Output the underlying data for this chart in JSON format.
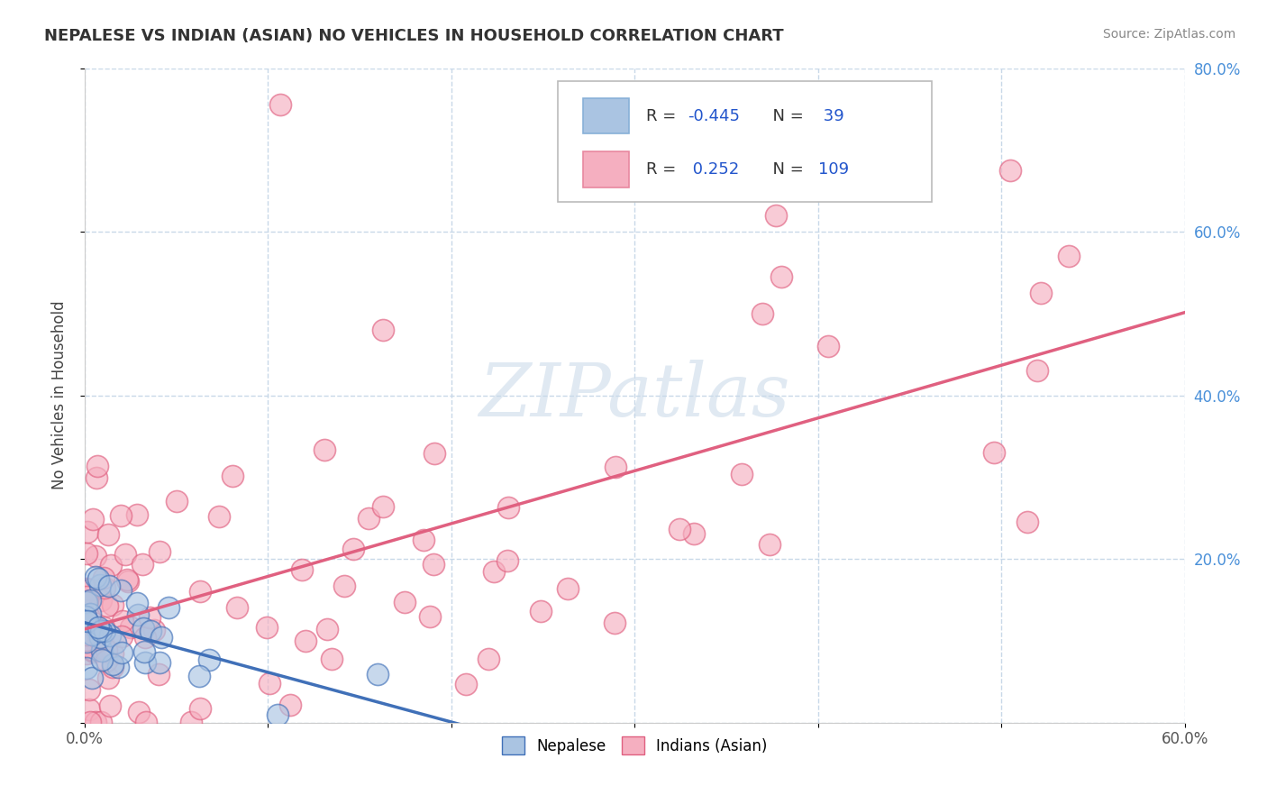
{
  "title": "NEPALESE VS INDIAN (ASIAN) NO VEHICLES IN HOUSEHOLD CORRELATION CHART",
  "source": "Source: ZipAtlas.com",
  "ylabel": "No Vehicles in Household",
  "xlim": [
    0.0,
    0.6
  ],
  "ylim": [
    0.0,
    0.8
  ],
  "xticks": [
    0.0,
    0.1,
    0.2,
    0.3,
    0.4,
    0.5,
    0.6
  ],
  "yticks": [
    0.0,
    0.2,
    0.4,
    0.6,
    0.8
  ],
  "xticklabels": [
    "0.0%",
    "",
    "",
    "",
    "",
    "",
    "60.0%"
  ],
  "yticklabels": [
    "",
    "20.0%",
    "40.0%",
    "60.0%",
    "80.0%"
  ],
  "nepalese_color": "#aac4e2",
  "indian_color": "#f5afc0",
  "nepalese_R": -0.445,
  "nepalese_N": 39,
  "indian_R": 0.252,
  "indian_N": 109,
  "nepalese_line_color": "#4070b8",
  "indian_line_color": "#e06080",
  "legend_color": "#2255cc",
  "background_color": "#ffffff",
  "grid_color": "#c8d8e8",
  "watermark": "ZIPatlas",
  "legend_label1": "Nepalese",
  "legend_label2": "Indians (Asian)"
}
